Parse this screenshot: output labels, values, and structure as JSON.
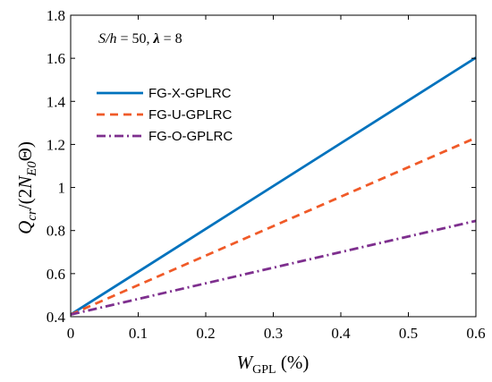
{
  "chart_data": {
    "type": "line",
    "annotation": {
      "s_label": "S/h",
      "s_value": " = 50, ",
      "lambda_label": "λ",
      "lambda_value": " = 8"
    },
    "xlabel": {
      "main": "W",
      "sub": "GPL",
      "unit": " (%)"
    },
    "ylabel": {
      "main": "Q",
      "sub": "cr",
      "mid": "/(2",
      "n": "N",
      "nsub": "E0",
      "end": "Θ)"
    },
    "xlim": [
      0,
      0.6
    ],
    "ylim": [
      0.4,
      1.8
    ],
    "xticks": [
      0,
      0.1,
      0.2,
      0.3,
      0.4,
      0.5,
      0.6
    ],
    "xtick_labels": [
      "0",
      "0.1",
      "0.2",
      "0.3",
      "0.4",
      "0.5",
      "0.6"
    ],
    "yticks": [
      0.4,
      0.6,
      0.8,
      1.0,
      1.2,
      1.4,
      1.6,
      1.8
    ],
    "ytick_labels": [
      "0.4",
      "0.6",
      "0.8",
      "1",
      "1.2",
      "1.4",
      "1.6",
      "1.8"
    ],
    "grid": false,
    "legend_position": "upper-left",
    "series": [
      {
        "name": "FG-X-GPLRC",
        "color": "#0072BD",
        "dash": "solid",
        "x": [
          0,
          0.6
        ],
        "y": [
          0.41,
          1.603
        ]
      },
      {
        "name": "FG-U-GPLRC",
        "color": "#F05A28",
        "dash": "dashed",
        "x": [
          0,
          0.6
        ],
        "y": [
          0.41,
          1.231
        ]
      },
      {
        "name": "FG-O-GPLRC",
        "color": "#7E2F8E",
        "dash": "dashdot",
        "x": [
          0,
          0.6
        ],
        "y": [
          0.41,
          0.845
        ]
      }
    ]
  }
}
